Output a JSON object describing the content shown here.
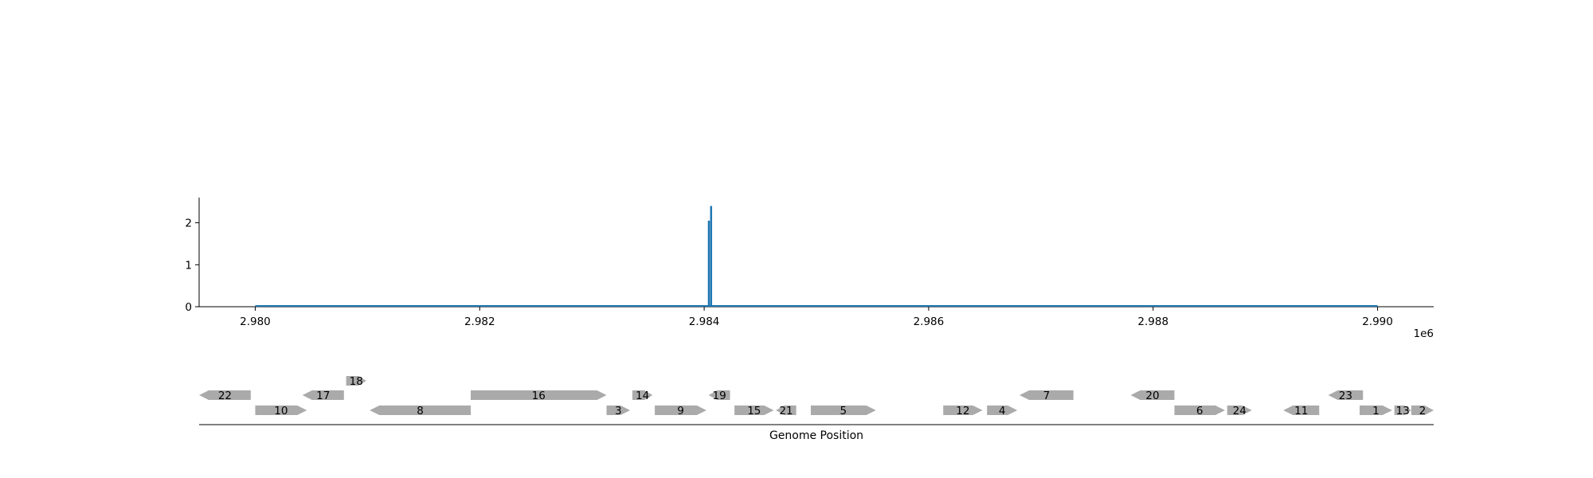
{
  "chart_data": [
    {
      "type": "bar",
      "title": "",
      "xlabel": "",
      "ylabel": "",
      "x_offset_label": "1e6",
      "xlim": [
        2979500,
        2990500
      ],
      "ylim": [
        0,
        2.6
      ],
      "xticks": [
        2980000,
        2982000,
        2984000,
        2986000,
        2988000,
        2990000
      ],
      "xtick_labels": [
        "2.980",
        "2.982",
        "2.984",
        "2.986",
        "2.988",
        "2.990"
      ],
      "yticks": [
        0,
        1,
        2
      ],
      "ytick_labels": [
        "0",
        "1",
        "2"
      ],
      "baseline": [
        2980000,
        2990000
      ],
      "series": [
        {
          "x": [
            2984040,
            2984060
          ],
          "values": [
            2.05,
            2.4
          ],
          "color": "#1f77b4"
        }
      ],
      "grid": false
    },
    {
      "type": "gene-track",
      "xlabel": "Genome Position",
      "gene_color": "#aaaaaa",
      "genes": [
        {
          "label": "22",
          "start": 2979500,
          "end": 2979960,
          "strand": "-",
          "row": 1
        },
        {
          "label": "10",
          "start": 2980000,
          "end": 2980460,
          "strand": "+",
          "row": 0
        },
        {
          "label": "17",
          "start": 2980420,
          "end": 2980790,
          "strand": "-",
          "row": 1
        },
        {
          "label": "18",
          "start": 2980810,
          "end": 2980990,
          "strand": "+",
          "row": 2
        },
        {
          "label": "8",
          "start": 2981020,
          "end": 2981920,
          "strand": "-",
          "row": 0
        },
        {
          "label": "16",
          "start": 2981920,
          "end": 2983130,
          "strand": "+",
          "row": 1
        },
        {
          "label": "3",
          "start": 2983130,
          "end": 2983340,
          "strand": "+",
          "row": 0
        },
        {
          "label": "14",
          "start": 2983360,
          "end": 2983540,
          "strand": "+",
          "row": 1
        },
        {
          "label": "9",
          "start": 2983560,
          "end": 2984020,
          "strand": "+",
          "row": 0
        },
        {
          "label": "19",
          "start": 2984040,
          "end": 2984230,
          "strand": "-",
          "row": 1
        },
        {
          "label": "15",
          "start": 2984270,
          "end": 2984620,
          "strand": "+",
          "row": 0
        },
        {
          "label": "21",
          "start": 2984640,
          "end": 2984820,
          "strand": "-",
          "row": 0
        },
        {
          "label": "5",
          "start": 2984950,
          "end": 2985530,
          "strand": "+",
          "row": 0
        },
        {
          "label": "12",
          "start": 2986130,
          "end": 2986480,
          "strand": "+",
          "row": 0
        },
        {
          "label": "4",
          "start": 2986520,
          "end": 2986790,
          "strand": "+",
          "row": 0
        },
        {
          "label": "7",
          "start": 2986810,
          "end": 2987290,
          "strand": "-",
          "row": 1
        },
        {
          "label": "20",
          "start": 2987800,
          "end": 2988190,
          "strand": "-",
          "row": 1
        },
        {
          "label": "6",
          "start": 2988190,
          "end": 2988640,
          "strand": "+",
          "row": 0
        },
        {
          "label": "24",
          "start": 2988660,
          "end": 2988880,
          "strand": "+",
          "row": 0
        },
        {
          "label": "11",
          "start": 2989160,
          "end": 2989480,
          "strand": "-",
          "row": 0
        },
        {
          "label": "23",
          "start": 2989560,
          "end": 2989870,
          "strand": "-",
          "row": 1
        },
        {
          "label": "1",
          "start": 2989840,
          "end": 2990130,
          "strand": "+",
          "row": 0
        },
        {
          "label": "13",
          "start": 2990150,
          "end": 2990300,
          "strand": "+",
          "row": 0
        },
        {
          "label": "2",
          "start": 2990300,
          "end": 2990500,
          "strand": "+",
          "row": 0
        }
      ]
    }
  ]
}
